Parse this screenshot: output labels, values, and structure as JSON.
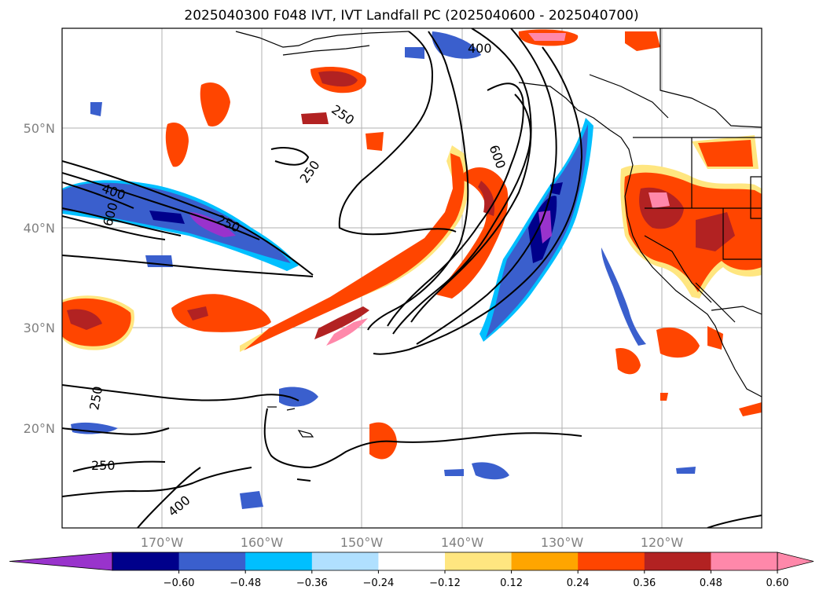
{
  "title": "2025040300 F048 IVT, IVT Landfall PC (2025040600 - 2025040700)",
  "lat_labels": [
    "50°N",
    "40°N",
    "30°N",
    "20°N"
  ],
  "lon_labels": [
    "170°W",
    "160°W",
    "150°W",
    "140°W",
    "130°W",
    "120°W"
  ],
  "contour_labels": [
    "400",
    "250",
    "250",
    "600",
    "400",
    "600",
    "250",
    "250",
    "250",
    "400"
  ],
  "colorbar": {
    "ticks": [
      "−0.60",
      "−0.48",
      "−0.36",
      "−0.24",
      "−0.12",
      "0.12",
      "0.24",
      "0.36",
      "0.48",
      "0.60"
    ],
    "colors": [
      "#9933cc",
      "#00008b",
      "#3a5fcd",
      "#00bfff",
      "#b0e0ff",
      "#ffffff",
      "#ffe680",
      "#ffa500",
      "#ff4500",
      "#b22222",
      "#ff88aa",
      "#ff88aa"
    ]
  }
}
